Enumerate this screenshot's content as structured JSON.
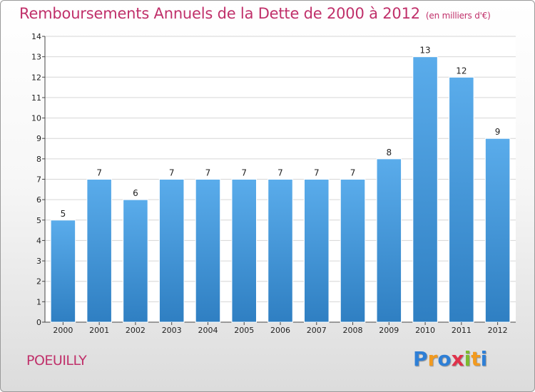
{
  "chart_data": {
    "type": "bar",
    "title": "Remboursements Annuels de la Dette de 2000 à 2012",
    "unit_label": "(en milliers d'€)",
    "categories": [
      "2000",
      "2001",
      "2002",
      "2003",
      "2004",
      "2005",
      "2006",
      "2007",
      "2008",
      "2009",
      "2010",
      "2011",
      "2012"
    ],
    "values": [
      5,
      7,
      6,
      7,
      7,
      7,
      7,
      7,
      7,
      8,
      13,
      12,
      9
    ],
    "ylim": [
      0,
      14
    ],
    "yticks": [
      0,
      1,
      2,
      3,
      4,
      5,
      6,
      7,
      8,
      9,
      10,
      11,
      12,
      13,
      14
    ],
    "grid": true,
    "bar_color_top": "#5aaceb",
    "bar_color_bottom": "#2f7fc2"
  },
  "footer": {
    "commune": "POEUILLY",
    "brand_letters": [
      {
        "ch": "P",
        "color": "#2e7fd6"
      },
      {
        "ch": "r",
        "color": "#f29a1f"
      },
      {
        "ch": "o",
        "color": "#2e7fd6"
      },
      {
        "ch": "x",
        "color": "#e0324b"
      },
      {
        "ch": "i",
        "color": "#7dbb2f"
      },
      {
        "ch": "t",
        "color": "#f29a1f"
      },
      {
        "ch": "i",
        "color": "#2e7fd6"
      }
    ]
  }
}
